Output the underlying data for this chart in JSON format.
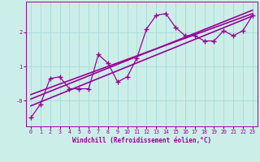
{
  "xlabel": "Windchill (Refroidissement éolien,°C)",
  "bg_color": "#cceee8",
  "plot_bg_color": "#cceee8",
  "grid_color": "#aadddd",
  "line_color": "#990099",
  "xlim": [
    -0.5,
    23.5
  ],
  "ylim": [
    -0.75,
    2.9
  ],
  "xticks": [
    0,
    1,
    2,
    3,
    4,
    5,
    6,
    7,
    8,
    9,
    10,
    11,
    12,
    13,
    14,
    15,
    16,
    17,
    18,
    19,
    20,
    21,
    22,
    23
  ],
  "yticks": [
    0,
    1,
    2
  ],
  "ytick_labels": [
    "-0",
    "1",
    "2"
  ],
  "scatter_x": [
    0,
    1,
    2,
    3,
    4,
    5,
    6,
    7,
    8,
    9,
    10,
    11,
    12,
    13,
    14,
    15,
    16,
    17,
    18,
    19,
    20,
    21,
    22,
    23
  ],
  "scatter_y": [
    -0.5,
    -0.1,
    0.65,
    0.7,
    0.35,
    0.35,
    0.35,
    1.35,
    1.1,
    0.55,
    0.7,
    1.25,
    2.1,
    2.5,
    2.55,
    2.15,
    1.9,
    1.9,
    1.75,
    1.75,
    2.05,
    1.9,
    2.05,
    2.5
  ],
  "line1_x": [
    0,
    23
  ],
  "line1_y": [
    -0.15,
    2.48
  ],
  "line2_x": [
    0,
    23
  ],
  "line2_y": [
    0.05,
    2.65
  ],
  "line3_x": [
    0,
    23
  ],
  "line3_y": [
    0.18,
    2.55
  ]
}
